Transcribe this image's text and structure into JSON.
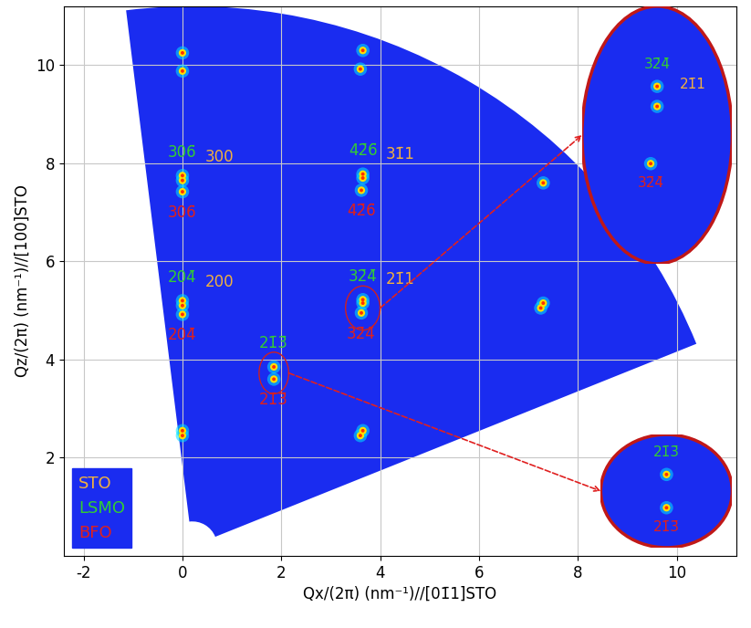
{
  "chart_data": {
    "type": "scatter",
    "xlabel": "Qx/(2π) (nm⁻¹)//[01̄1]STO",
    "ylabel": "Qz/(2π) (nm⁻¹)//[100]STO",
    "xlim": [
      -2.4,
      11.2
    ],
    "ylim": [
      0,
      11.2
    ],
    "xticks": [
      -2,
      0,
      2,
      4,
      6,
      8,
      10
    ],
    "yticks": [
      2,
      4,
      6,
      8,
      10
    ],
    "grid": true,
    "legend": "lower left",
    "series": [
      {
        "name": "STO",
        "color": "#f0b040",
        "x": [
          0,
          0,
          3.65,
          3.65,
          0,
          3.65,
          0,
          3.65,
          7.3
        ],
        "y": [
          5.1,
          7.65,
          5.15,
          7.7,
          2.55,
          2.55,
          10.25,
          10.3,
          5.15
        ],
        "labels": [
          "200",
          "300",
          "21̄1",
          "31̄1",
          null,
          null,
          null,
          null,
          null
        ]
      },
      {
        "name": "LSMO",
        "color": "#33cc33",
        "x": [
          0,
          0,
          3.65,
          3.65,
          1.85,
          7.3
        ],
        "y": [
          5.2,
          7.75,
          5.22,
          7.78,
          3.85,
          7.6
        ],
        "labels": [
          "204̄",
          "306̄",
          "32̄4̄",
          "42̄6̄",
          "21̄3̄",
          null
        ]
      },
      {
        "name": "BFO",
        "color": "#e0201b",
        "x": [
          0,
          0,
          3.62,
          3.62,
          1.85,
          0,
          3.6,
          7.25,
          3.6,
          0
        ],
        "y": [
          4.92,
          7.42,
          4.95,
          7.45,
          3.6,
          9.88,
          9.92,
          5.05,
          2.45,
          2.45
        ],
        "labels": [
          "204̄",
          "306̄",
          "32̄4̄",
          "42̄6̄",
          "21̄3̄",
          null,
          null,
          null,
          null,
          null
        ]
      }
    ],
    "zoom": [
      {
        "xlim": [
          3.3,
          4.0
        ],
        "ylim": [
          4.6,
          5.5
        ]
      },
      {
        "xlim": [
          1.55,
          2.15
        ],
        "ylim": [
          3.3,
          4.15
        ]
      }
    ]
  }
}
